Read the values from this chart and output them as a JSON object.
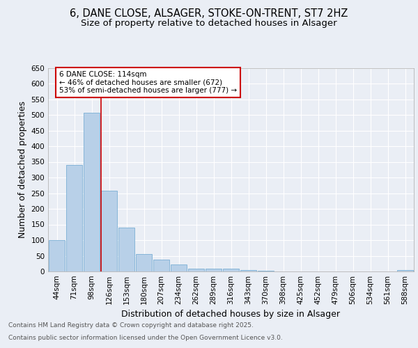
{
  "title_line1": "6, DANE CLOSE, ALSAGER, STOKE-ON-TRENT, ST7 2HZ",
  "title_line2": "Size of property relative to detached houses in Alsager",
  "xlabel": "Distribution of detached houses by size in Alsager",
  "ylabel": "Number of detached properties",
  "categories": [
    "44sqm",
    "71sqm",
    "98sqm",
    "126sqm",
    "153sqm",
    "180sqm",
    "207sqm",
    "234sqm",
    "262sqm",
    "289sqm",
    "316sqm",
    "343sqm",
    "370sqm",
    "398sqm",
    "425sqm",
    "452sqm",
    "479sqm",
    "506sqm",
    "534sqm",
    "561sqm",
    "588sqm"
  ],
  "values": [
    100,
    340,
    507,
    257,
    140,
    55,
    38,
    22,
    9,
    9,
    9,
    5,
    3,
    1,
    1,
    1,
    0,
    0,
    0,
    0,
    4
  ],
  "bar_color": "#b8d0e8",
  "bar_edge_color": "#7aafd4",
  "vline_x_index": 3,
  "vline_color": "#cc0000",
  "annotation_text": "6 DANE CLOSE: 114sqm\n← 46% of detached houses are smaller (672)\n53% of semi-detached houses are larger (777) →",
  "annotation_box_color": "#ffffff",
  "annotation_box_edge_color": "#cc0000",
  "ylim": [
    0,
    650
  ],
  "yticks": [
    0,
    50,
    100,
    150,
    200,
    250,
    300,
    350,
    400,
    450,
    500,
    550,
    600,
    650
  ],
  "background_color": "#eaeef5",
  "plot_bg_color": "#eaeef5",
  "grid_color": "#ffffff",
  "footer_line1": "Contains HM Land Registry data © Crown copyright and database right 2025.",
  "footer_line2": "Contains public sector information licensed under the Open Government Licence v3.0.",
  "title_fontsize": 10.5,
  "subtitle_fontsize": 9.5,
  "axis_label_fontsize": 9,
  "tick_fontsize": 7.5,
  "annotation_fontsize": 7.5,
  "footer_fontsize": 6.5
}
